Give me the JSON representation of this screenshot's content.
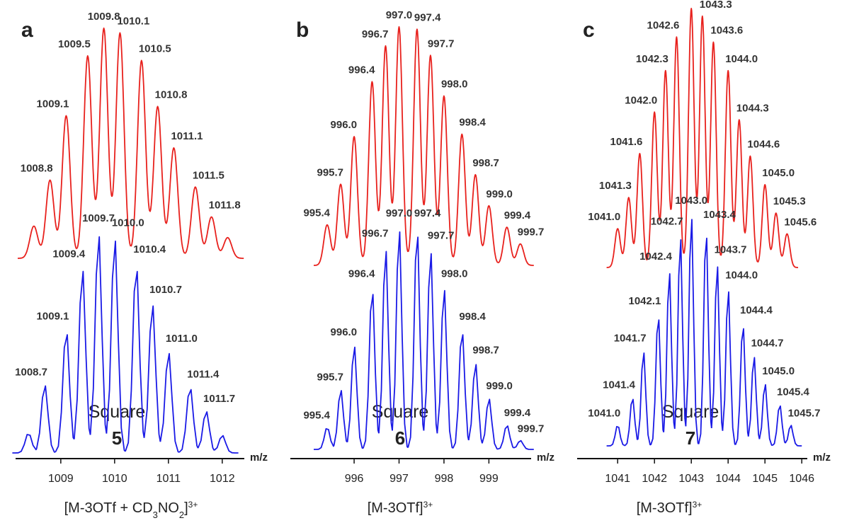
{
  "chart_data": [
    {
      "type": "line",
      "panel": "a",
      "xlabel": "m/z",
      "xlim": [
        1008.16,
        1012.41
      ],
      "xticks": [
        1009,
        1010,
        1011,
        1012
      ],
      "compound": "Square",
      "number": "5",
      "formula": [
        {
          "text": "[M-3OTf + CD"
        },
        {
          "text": "3",
          "style": "sub"
        },
        {
          "text": "NO"
        },
        {
          "text": "2",
          "style": "sub"
        },
        {
          "text": "]"
        },
        {
          "text": "3+",
          "style": "sup"
        }
      ],
      "series": [
        {
          "color": "#e8211d",
          "x": [
            1008.5,
            1008.8,
            1009.1,
            1009.5,
            1009.8,
            1010.1,
            1010.5,
            1010.8,
            1011.1,
            1011.5,
            1011.8,
            1012.1
          ],
          "x_labels": [
            null,
            "1008.8",
            "1009.1",
            "1009.5",
            "1009.8",
            "1010.1",
            "1010.5",
            "1010.8",
            "1011.1",
            "1011.5",
            "1011.8",
            null
          ],
          "values": [
            14,
            34,
            62,
            88,
            100,
            98,
            86,
            66,
            48,
            31,
            18,
            9
          ]
        },
        {
          "color": "#1a1ae6",
          "x": [
            1008.4,
            1008.7,
            1009.1,
            1009.4,
            1009.7,
            1010.0,
            1010.4,
            1010.7,
            1011.0,
            1011.4,
            1011.7,
            1012.0
          ],
          "x_labels": [
            null,
            "1008.7",
            "1009.1",
            "1009.4",
            "1009.7",
            "1010.0",
            "1010.4",
            "1010.7",
            "1011.0",
            "1011.4",
            "1011.7",
            null
          ],
          "values": [
            9,
            31,
            56,
            84,
            100,
            98,
            86,
            68,
            46,
            30,
            19,
            8
          ]
        }
      ]
    },
    {
      "type": "line",
      "panel": "b",
      "xlabel": "m/z",
      "xlim": [
        994.58,
        999.94
      ],
      "xticks": [
        996,
        997,
        998,
        999
      ],
      "compound": "Square",
      "number": "6",
      "formula": [
        {
          "text": "[M-3OTf]"
        },
        {
          "text": "3+",
          "style": "sup"
        }
      ],
      "series": [
        {
          "color": "#e8211d",
          "x": [
            995.4,
            995.7,
            996.0,
            996.4,
            996.7,
            997.0,
            997.4,
            997.7,
            998.0,
            998.4,
            998.7,
            999.0,
            999.4,
            999.7
          ],
          "x_labels": [
            "995.4",
            "995.7",
            "996.0",
            "996.4",
            "996.7",
            "997.0",
            "997.4",
            "997.7",
            "998.0",
            "998.4",
            "998.7",
            "999.0",
            "999.4",
            "999.7"
          ],
          "values": [
            17,
            34,
            54,
            77,
            92,
            100,
            99,
            88,
            71,
            55,
            38,
            25,
            16,
            9
          ]
        },
        {
          "color": "#1a1ae6",
          "x": [
            995.4,
            995.7,
            996.0,
            996.4,
            996.7,
            997.0,
            997.4,
            997.7,
            998.0,
            998.4,
            998.7,
            999.0,
            999.4,
            999.7
          ],
          "x_labels": [
            "995.4",
            "995.7",
            "996.0",
            "996.4",
            "996.7",
            "997.0",
            "997.4",
            "997.7",
            "998.0",
            "998.4",
            "998.7",
            "999.0",
            "999.4",
            "999.7"
          ],
          "values": [
            10,
            27,
            47,
            73,
            91,
            100,
            100,
            90,
            73,
            54,
            39,
            23,
            11,
            4
          ]
        }
      ]
    },
    {
      "type": "line",
      "panel": "c",
      "xlabel": "m/z",
      "xlim": [
        1039.9,
        1046.15
      ],
      "xticks": [
        1041,
        1042,
        1043,
        1044,
        1045,
        1046
      ],
      "compound": "Square",
      "number": "7",
      "formula": [
        {
          "text": "[M-3OTf]"
        },
        {
          "text": "3+",
          "style": "sup"
        }
      ],
      "series": [
        {
          "color": "#e8211d",
          "x": [
            1041.0,
            1041.3,
            1041.6,
            1042.0,
            1042.3,
            1042.6,
            1043.0,
            1043.3,
            1043.6,
            1044.0,
            1044.3,
            1044.6,
            1045.0,
            1045.3,
            1045.6
          ],
          "x_labels": [
            "1041.0",
            "1041.3",
            "1041.6",
            "1042.0",
            "1042.3",
            "1042.6",
            "1043.0",
            "1043.3",
            "1043.6",
            "1044.0",
            "1044.3",
            "1044.6",
            "1045.0",
            "1045.3",
            "1045.6"
          ],
          "values": [
            15,
            27,
            44,
            60,
            76,
            89,
            100,
            97,
            87,
            76,
            57,
            43,
            32,
            21,
            13
          ]
        },
        {
          "color": "#1a1ae6",
          "x": [
            1041.0,
            1041.4,
            1041.7,
            1042.1,
            1042.4,
            1042.7,
            1043.0,
            1043.4,
            1043.7,
            1044.0,
            1044.4,
            1044.7,
            1045.0,
            1045.4,
            1045.7
          ],
          "x_labels": [
            "1041.0",
            "1041.4",
            "1041.7",
            "1042.1",
            "1042.4",
            "1042.7",
            "1043.0",
            "1043.4",
            "1043.7",
            "1044.0",
            "1044.4",
            "1044.7",
            "1045.0",
            "1045.4",
            "1045.7"
          ],
          "values": [
            9,
            21,
            41,
            57,
            76,
            91,
            100,
            94,
            79,
            68,
            53,
            39,
            27,
            18,
            9
          ]
        }
      ]
    }
  ]
}
